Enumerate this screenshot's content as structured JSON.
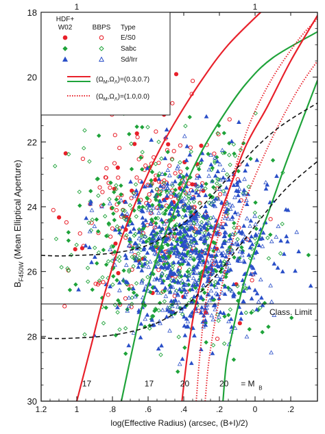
{
  "chart_data": {
    "type": "scatter",
    "xlabel": "log(Effective Radius) (arcsec, (B+I)/2)",
    "ylabel_main": "B",
    "ylabel_sub": "F450W",
    "ylabel_rest": " (Mean Elliptical Aperture)",
    "x_reversed": true,
    "y_reversed": true,
    "xlim": [
      1.2,
      -0.35
    ],
    "ylim": [
      18,
      30
    ],
    "x_ticks": [
      1.2,
      1.0,
      0.8,
      0.6,
      0.4,
      0.2,
      0,
      -0.2
    ],
    "x_tick_labels": [
      "1.2",
      "1",
      ".8",
      ".6",
      ".4",
      ".2",
      "0",
      ".2"
    ],
    "y_ticks": [
      18,
      20,
      22,
      24,
      26,
      28,
      30
    ],
    "y_tick_labels": [
      "18",
      "20",
      "22",
      "24",
      "26",
      "28",
      "30"
    ],
    "top_ticks": [
      {
        "x": 1.0,
        "label": "1"
      },
      {
        "x": 0.0,
        "label": "1"
      }
    ],
    "legend": {
      "col1_title_line1": "HDF+",
      "col1_title_line2": "W02",
      "col2_title": "BBPS",
      "col3_title": "Type",
      "rows": [
        {
          "label": "E/S0",
          "color": "#e8202a",
          "marker": "circle"
        },
        {
          "label": "Sabc",
          "color": "#1fa33a",
          "marker": "diamond"
        },
        {
          "label": "Sd/Irr",
          "color": "#2a4fc8",
          "marker": "triangle"
        }
      ],
      "lines": [
        {
          "label": "(ΩM,ΩΛ)=(0.3,0.7)",
          "sub1": "M",
          "sub2": "Λ",
          "values": "=(0.3,0.7)",
          "style": "solid"
        },
        {
          "label": "(ΩM,ΩΛ)=(1.0,0.0)",
          "sub1": "M",
          "sub2": "Λ",
          "values": "=(1.0,0.0)",
          "style": "dotted"
        }
      ]
    },
    "class_limit": {
      "y": 27.0,
      "label": "Class. Limit"
    },
    "annotations": [
      {
        "text": "17",
        "x": 0.97,
        "y": 29.55
      },
      {
        "text": "17",
        "x": 0.62,
        "y": 29.55
      },
      {
        "text": "20",
        "x": 0.42,
        "y": 29.55
      },
      {
        "text": "20",
        "x": 0.2,
        "y": 29.55
      },
      {
        "text": "= M",
        "x": 0.08,
        "y": 29.55
      },
      {
        "text": "B",
        "x": -0.02,
        "y": 29.65
      }
    ],
    "series": [
      {
        "name": "",
        "style": "solid",
        "color": "#e8202a",
        "points": [
          [
            1.0,
            30.0
          ],
          [
            0.92,
            28.3
          ],
          [
            0.85,
            26.8
          ],
          [
            0.75,
            25.0
          ],
          [
            0.65,
            23.6
          ],
          [
            0.55,
            22.4
          ],
          [
            0.45,
            21.4
          ],
          [
            0.3,
            20.1
          ],
          [
            0.15,
            19.0
          ],
          [
            -0.05,
            17.9
          ]
        ]
      },
      {
        "name": "",
        "style": "solid",
        "color": "#1fa33a",
        "points": [
          [
            0.75,
            30.0
          ],
          [
            0.68,
            28.2
          ],
          [
            0.62,
            26.8
          ],
          [
            0.52,
            25.1
          ],
          [
            0.42,
            23.7
          ],
          [
            0.3,
            22.3
          ],
          [
            0.18,
            21.2
          ],
          [
            0.05,
            20.2
          ],
          [
            -0.1,
            19.4
          ],
          [
            -0.35,
            18.6
          ]
        ]
      },
      {
        "name": "",
        "style": "solid",
        "color": "#e8202a",
        "points": [
          [
            0.41,
            30.0
          ],
          [
            0.38,
            28.6
          ],
          [
            0.34,
            27.2
          ],
          [
            0.29,
            26.0
          ],
          [
            0.22,
            24.6
          ],
          [
            0.14,
            23.4
          ],
          [
            0.05,
            22.1
          ],
          [
            -0.07,
            20.9
          ],
          [
            -0.2,
            19.5
          ],
          [
            -0.35,
            18.1
          ]
        ]
      },
      {
        "name": "",
        "style": "solid",
        "color": "#1fa33a",
        "points": [
          [
            0.18,
            30.0
          ],
          [
            0.16,
            28.8
          ],
          [
            0.12,
            27.7
          ],
          [
            0.07,
            26.5
          ],
          [
            0.0,
            25.3
          ],
          [
            -0.08,
            24.1
          ],
          [
            -0.17,
            22.7
          ],
          [
            -0.26,
            21.4
          ],
          [
            -0.35,
            20.1
          ]
        ]
      },
      {
        "name": "",
        "style": "dotted",
        "color": "#e8202a",
        "points": [
          [
            0.33,
            30.0
          ],
          [
            0.31,
            28.6
          ],
          [
            0.28,
            27.1
          ],
          [
            0.23,
            25.5
          ],
          [
            0.17,
            24.0
          ],
          [
            0.1,
            22.6
          ],
          [
            0.02,
            21.3
          ],
          [
            -0.1,
            20.0
          ],
          [
            -0.25,
            18.8
          ],
          [
            -0.35,
            18.2
          ]
        ]
      },
      {
        "name": "",
        "style": "dotted",
        "color": "#e8202a",
        "points": [
          [
            0.28,
            30.0
          ],
          [
            0.26,
            28.8
          ],
          [
            0.22,
            27.4
          ],
          [
            0.16,
            25.8
          ],
          [
            0.08,
            24.2
          ],
          [
            -0.02,
            22.8
          ],
          [
            -0.13,
            21.5
          ],
          [
            -0.25,
            20.3
          ],
          [
            -0.35,
            19.5
          ]
        ]
      },
      {
        "name": "",
        "style": "dashed",
        "color": "#111111",
        "points": [
          [
            1.2,
            25.5
          ],
          [
            1.1,
            25.52
          ],
          [
            1.0,
            25.5
          ],
          [
            0.9,
            25.48
          ],
          [
            0.8,
            25.43
          ],
          [
            0.7,
            25.34
          ],
          [
            0.6,
            25.18
          ],
          [
            0.5,
            24.9
          ],
          [
            0.4,
            24.5
          ],
          [
            0.3,
            24.0
          ],
          [
            0.2,
            23.4
          ],
          [
            0.1,
            22.8
          ],
          [
            0.0,
            22.2
          ],
          [
            -0.1,
            21.7
          ],
          [
            -0.2,
            21.3
          ],
          [
            -0.35,
            20.8
          ]
        ]
      },
      {
        "name": "",
        "style": "dashed",
        "color": "#111111",
        "points": [
          [
            1.2,
            28.05
          ],
          [
            1.1,
            28.07
          ],
          [
            1.0,
            28.05
          ],
          [
            0.9,
            28.02
          ],
          [
            0.8,
            27.96
          ],
          [
            0.7,
            27.86
          ],
          [
            0.6,
            27.7
          ],
          [
            0.5,
            27.45
          ],
          [
            0.4,
            27.1
          ],
          [
            0.3,
            26.6
          ],
          [
            0.2,
            26.0
          ],
          [
            0.1,
            25.3
          ],
          [
            0.0,
            24.6
          ],
          [
            -0.1,
            23.9
          ],
          [
            -0.2,
            23.3
          ],
          [
            -0.35,
            22.6
          ]
        ]
      }
    ],
    "scatter": [
      {
        "name": "E/S0",
        "color": "#e8202a",
        "marker": "circle",
        "count": 230,
        "x_center": 0.55,
        "x_spread": 0.22,
        "y_center": 24.0,
        "y_spread": 1.6
      },
      {
        "name": "Sabc",
        "color": "#1fa33a",
        "marker": "diamond",
        "count": 600,
        "x_center": 0.45,
        "x_spread": 0.25,
        "y_center": 24.9,
        "y_spread": 1.5
      },
      {
        "name": "Sd/Irr",
        "color": "#2a4fc8",
        "marker": "triangle",
        "count": 800,
        "x_center": 0.35,
        "x_spread": 0.22,
        "y_center": 25.3,
        "y_spread": 1.3
      }
    ]
  }
}
